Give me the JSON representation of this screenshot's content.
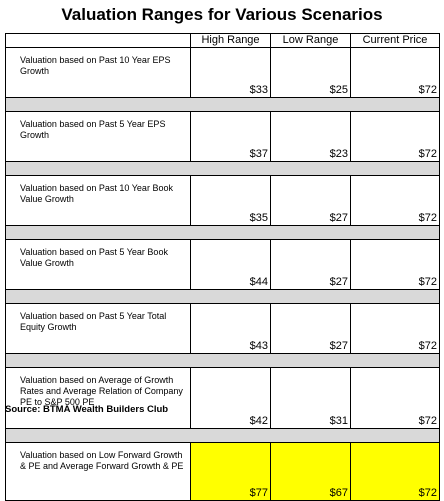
{
  "title": "Valuation Ranges for Various Scenarios",
  "columns": [
    "",
    "High Range",
    "Low Range",
    "Current Price"
  ],
  "rows": [
    {
      "label": "Valuation based on Past 10 Year EPS Growth",
      "high": "$33",
      "low": "$25",
      "current": "$72"
    },
    {
      "label": "Valuation based on Past 5 Year EPS Growth",
      "high": "$37",
      "low": "$23",
      "current": "$72"
    },
    {
      "label": "Valuation based on Past 10 Year Book Value Growth",
      "high": "$35",
      "low": "$27",
      "current": "$72"
    },
    {
      "label": "Valuation based on Past 5 Year Book Value Growth",
      "high": "$44",
      "low": "$27",
      "current": "$72"
    },
    {
      "label": "Valuation based on Past 5 Year Total Equity Growth",
      "high": "$43",
      "low": "$27",
      "current": "$72"
    },
    {
      "label": "Valuation based on Average of Growth Rates and Average Relation of Company PE to S&P 500 PE",
      "high": "$42",
      "low": "$31",
      "current": "$72"
    },
    {
      "label": "Valuation based on Low Forward Growth & PE and Average Forward Growth & PE",
      "high": "$77",
      "low": "$67",
      "current": "$72"
    }
  ],
  "highlight_color": "#ffff00",
  "spacer_color": "#d9d9d9",
  "source": "Source: BTMA Wealth Builders Club"
}
